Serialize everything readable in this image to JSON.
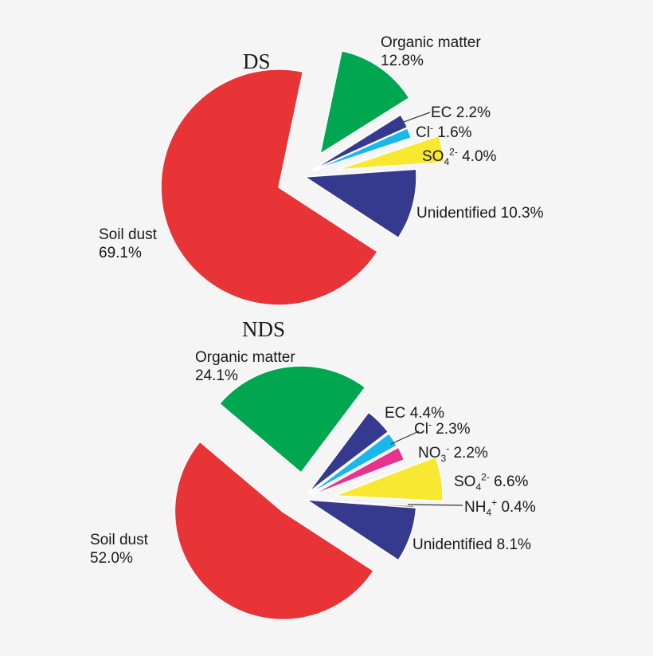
{
  "chart_data": [
    {
      "type": "pie",
      "title": "DS",
      "slices": [
        {
          "name": "Unidentified",
          "label": "Unidentified",
          "sub": "",
          "sup": "",
          "value": 10.3,
          "display": "10.3%",
          "color": "#363a8e"
        },
        {
          "name": "Soil dust",
          "label": "Soil dust",
          "sub": "",
          "sup": "",
          "value": 69.1,
          "display": "69.1%",
          "color": "#e83437"
        },
        {
          "name": "Organic matter",
          "label": "Organic matter",
          "sub": "",
          "sup": "",
          "value": 12.8,
          "display": "12.8%",
          "color": "#00a650"
        },
        {
          "name": "EC",
          "label": "EC",
          "sub": "",
          "sup": "",
          "value": 2.2,
          "display": "2.2%",
          "color": "#363a8e"
        },
        {
          "name": "Cl-",
          "label": "Cl",
          "sub": "",
          "sup": "-",
          "value": 1.6,
          "display": "1.6%",
          "color": "#1ab7ea"
        },
        {
          "name": "SO4 2-",
          "label": "SO",
          "sub": "4",
          "sup": "2-",
          "value": 4.0,
          "display": "4.0%",
          "color": "#f8e831"
        }
      ]
    },
    {
      "type": "pie",
      "title": "NDS",
      "slices": [
        {
          "name": "Soil dust",
          "label": "Soil dust",
          "sub": "",
          "sup": "",
          "value": 52.0,
          "display": "52.0%",
          "color": "#e83437"
        },
        {
          "name": "Organic matter",
          "label": "Organic matter",
          "sub": "",
          "sup": "",
          "value": 24.1,
          "display": "24.1%",
          "color": "#00a650"
        },
        {
          "name": "EC",
          "label": "EC",
          "sub": "",
          "sup": "",
          "value": 4.4,
          "display": "4.4%",
          "color": "#363a8e"
        },
        {
          "name": "Cl-",
          "label": "Cl",
          "sub": "",
          "sup": "-",
          "value": 2.3,
          "display": "2.3%",
          "color": "#1ab7ea"
        },
        {
          "name": "NO3-",
          "label": "NO",
          "sub": "3",
          "sup": "-",
          "value": 2.2,
          "display": "2.2%",
          "color": "#e8338e"
        },
        {
          "name": "SO4 2-",
          "label": "SO",
          "sub": "4",
          "sup": "2-",
          "value": 6.6,
          "display": "6.6%",
          "color": "#f8e831"
        },
        {
          "name": "NH4+",
          "label": "NH",
          "sub": "4",
          "sup": "+",
          "value": 0.4,
          "display": "0.4%",
          "color": "#8a8a3a"
        },
        {
          "name": "Unidentified",
          "label": "Unidentified",
          "sub": "",
          "sup": "",
          "value": 8.1,
          "display": "8.1%",
          "color": "#363a8e"
        }
      ]
    }
  ]
}
